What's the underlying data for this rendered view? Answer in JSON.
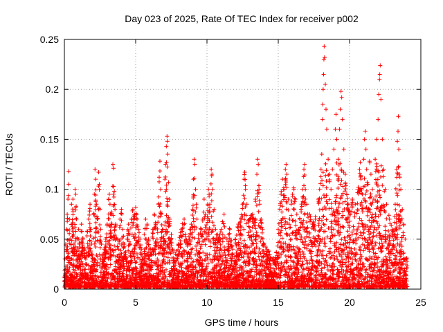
{
  "chart_data": {
    "type": "scatter",
    "title": "Day 023 of 2025, Rate Of TEC Index for receiver p002",
    "xlabel": "GPS time / hours",
    "ylabel": "ROTI / TECUs",
    "xlim": [
      0,
      25
    ],
    "ylim": [
      0,
      0.25
    ],
    "x_ticks": [
      "0",
      "5",
      "10",
      "15",
      "20",
      "25"
    ],
    "y_ticks": [
      "0",
      "0.05",
      "0.1",
      "0.15",
      "0.2",
      "0.25"
    ],
    "marker": "+",
    "color": "#ff0000",
    "grid": true,
    "series": [
      {
        "name": "ROTI",
        "points": [
          [
            0.05,
            0.012
          ],
          [
            0.1,
            0.045
          ],
          [
            0.15,
            0.06
          ],
          [
            0.2,
            0.075
          ],
          [
            0.25,
            0.09
          ],
          [
            0.3,
            0.118
          ],
          [
            0.3,
            0.105
          ],
          [
            0.35,
            0.07
          ],
          [
            0.4,
            0.05
          ],
          [
            0.45,
            0.03
          ],
          [
            0.5,
            0.085
          ],
          [
            0.55,
            0.065
          ],
          [
            0.6,
            0.09
          ],
          [
            0.65,
            0.055
          ],
          [
            0.7,
            0.04
          ],
          [
            0.75,
            0.1
          ],
          [
            0.8,
            0.095
          ],
          [
            0.85,
            0.07
          ],
          [
            0.9,
            0.05
          ],
          [
            0.95,
            0.03
          ],
          [
            1.0,
            0.06
          ],
          [
            1.05,
            0.045
          ],
          [
            1.1,
            0.035
          ],
          [
            1.2,
            0.065
          ],
          [
            1.3,
            0.05
          ],
          [
            1.4,
            0.04
          ],
          [
            1.5,
            0.03
          ],
          [
            1.6,
            0.058
          ],
          [
            1.7,
            0.07
          ],
          [
            1.8,
            0.085
          ],
          [
            1.85,
            0.06
          ],
          [
            1.9,
            0.045
          ],
          [
            1.95,
            0.035
          ],
          [
            2.0,
            0.03
          ],
          [
            2.05,
            0.075
          ],
          [
            2.1,
            0.095
          ],
          [
            2.15,
            0.12
          ],
          [
            2.2,
            0.11
          ],
          [
            2.25,
            0.085
          ],
          [
            2.3,
            0.07
          ],
          [
            2.4,
            0.117
          ],
          [
            2.45,
            0.105
          ],
          [
            2.5,
            0.08
          ],
          [
            2.55,
            0.06
          ],
          [
            2.6,
            0.045
          ],
          [
            2.7,
            0.03
          ],
          [
            2.8,
            0.04
          ],
          [
            2.9,
            0.05
          ],
          [
            3.0,
            0.065
          ],
          [
            3.1,
            0.09
          ],
          [
            3.15,
            0.095
          ],
          [
            3.2,
            0.085
          ],
          [
            3.3,
            0.075
          ],
          [
            3.4,
            0.125
          ],
          [
            3.45,
            0.121
          ],
          [
            3.5,
            0.098
          ],
          [
            3.55,
            0.08
          ],
          [
            3.6,
            0.065
          ],
          [
            3.7,
            0.05
          ],
          [
            3.8,
            0.04
          ],
          [
            3.9,
            0.07
          ],
          [
            4.0,
            0.08
          ],
          [
            4.1,
            0.06
          ],
          [
            4.2,
            0.045
          ],
          [
            4.3,
            0.035
          ],
          [
            4.4,
            0.05
          ],
          [
            4.5,
            0.065
          ],
          [
            4.6,
            0.055
          ],
          [
            4.7,
            0.07
          ],
          [
            4.8,
            0.08
          ],
          [
            4.9,
            0.075
          ],
          [
            5.0,
            0.082
          ],
          [
            5.1,
            0.07
          ],
          [
            5.2,
            0.06
          ],
          [
            5.3,
            0.05
          ],
          [
            5.4,
            0.04
          ],
          [
            5.5,
            0.03
          ],
          [
            5.6,
            0.055
          ],
          [
            5.7,
            0.07
          ],
          [
            5.8,
            0.065
          ],
          [
            5.9,
            0.05
          ],
          [
            6.0,
            0.04
          ],
          [
            6.1,
            0.035
          ],
          [
            6.2,
            0.06
          ],
          [
            6.3,
            0.075
          ],
          [
            6.4,
            0.065
          ],
          [
            6.5,
            0.05
          ],
          [
            6.6,
            0.085
          ],
          [
            6.65,
            0.112
          ],
          [
            6.7,
            0.128
          ],
          [
            6.75,
            0.1
          ],
          [
            6.8,
            0.075
          ],
          [
            6.9,
            0.06
          ],
          [
            7.0,
            0.045
          ],
          [
            7.05,
            0.11
          ],
          [
            7.1,
            0.125
          ],
          [
            7.15,
            0.143
          ],
          [
            7.2,
            0.153
          ],
          [
            7.22,
            0.148
          ],
          [
            7.25,
            0.135
          ],
          [
            7.3,
            0.107
          ],
          [
            7.35,
            0.09
          ],
          [
            7.4,
            0.07
          ],
          [
            7.5,
            0.055
          ],
          [
            7.6,
            0.04
          ],
          [
            7.8,
            0.035
          ],
          [
            8.0,
            0.045
          ],
          [
            8.2,
            0.06
          ],
          [
            8.4,
            0.07
          ],
          [
            8.5,
            0.055
          ],
          [
            8.6,
            0.045
          ],
          [
            8.8,
            0.06
          ],
          [
            8.9,
            0.065
          ],
          [
            9.0,
            0.08
          ],
          [
            9.05,
            0.11
          ],
          [
            9.1,
            0.13
          ],
          [
            9.15,
            0.125
          ],
          [
            9.2,
            0.1
          ],
          [
            9.25,
            0.085
          ],
          [
            9.3,
            0.07
          ],
          [
            9.4,
            0.055
          ],
          [
            9.6,
            0.06
          ],
          [
            9.7,
            0.07
          ],
          [
            9.8,
            0.09
          ],
          [
            9.9,
            0.075
          ],
          [
            10.0,
            0.06
          ],
          [
            10.05,
            0.085
          ],
          [
            10.1,
            0.1
          ],
          [
            10.15,
            0.095
          ],
          [
            10.2,
            0.085
          ],
          [
            10.3,
            0.12
          ],
          [
            10.35,
            0.115
          ],
          [
            10.4,
            0.1
          ],
          [
            10.5,
            0.08
          ],
          [
            10.6,
            0.06
          ],
          [
            10.8,
            0.05
          ],
          [
            11.0,
            0.06
          ],
          [
            11.2,
            0.075
          ],
          [
            11.4,
            0.05
          ],
          [
            11.6,
            0.06
          ],
          [
            11.8,
            0.04
          ],
          [
            12.0,
            0.05
          ],
          [
            12.2,
            0.065
          ],
          [
            12.4,
            0.07
          ],
          [
            12.5,
            0.085
          ],
          [
            12.6,
            0.11
          ],
          [
            12.65,
            0.117
          ],
          [
            12.7,
            0.1
          ],
          [
            12.8,
            0.085
          ],
          [
            13.0,
            0.07
          ],
          [
            13.2,
            0.075
          ],
          [
            13.4,
            0.09
          ],
          [
            13.5,
            0.115
          ],
          [
            13.55,
            0.13
          ],
          [
            13.6,
            0.125
          ],
          [
            13.65,
            0.1
          ],
          [
            13.7,
            0.085
          ],
          [
            13.8,
            0.07
          ],
          [
            13.9,
            0.06
          ],
          [
            14.0,
            0.045
          ],
          [
            14.2,
            0.04
          ],
          [
            14.4,
            0.035
          ],
          [
            14.6,
            0.03
          ],
          [
            14.8,
            0.03
          ],
          [
            15.0,
            0.06
          ],
          [
            15.1,
            0.08
          ],
          [
            15.2,
            0.095
          ],
          [
            15.3,
            0.11
          ],
          [
            15.4,
            0.1
          ],
          [
            15.5,
            0.12
          ],
          [
            15.55,
            0.125
          ],
          [
            15.6,
            0.115
          ],
          [
            15.7,
            0.09
          ],
          [
            15.8,
            0.07
          ],
          [
            15.9,
            0.085
          ],
          [
            16.0,
            0.095
          ],
          [
            16.1,
            0.1
          ],
          [
            16.2,
            0.09
          ],
          [
            16.3,
            0.075
          ],
          [
            16.4,
            0.06
          ],
          [
            16.5,
            0.07
          ],
          [
            16.6,
            0.08
          ],
          [
            16.7,
            0.1
          ],
          [
            16.8,
            0.12
          ],
          [
            16.85,
            0.125
          ],
          [
            16.9,
            0.1
          ],
          [
            17.0,
            0.085
          ],
          [
            17.2,
            0.075
          ],
          [
            17.4,
            0.065
          ],
          [
            17.6,
            0.07
          ],
          [
            17.8,
            0.09
          ],
          [
            17.9,
            0.1
          ],
          [
            18.0,
            0.12
          ],
          [
            18.05,
            0.135
          ],
          [
            18.1,
            0.17
          ],
          [
            18.12,
            0.185
          ],
          [
            18.15,
            0.2
          ],
          [
            18.18,
            0.215
          ],
          [
            18.2,
            0.23
          ],
          [
            18.22,
            0.243
          ],
          [
            18.25,
            0.232
          ],
          [
            18.3,
            0.205
          ],
          [
            18.35,
            0.18
          ],
          [
            18.4,
            0.16
          ],
          [
            18.5,
            0.13
          ],
          [
            18.6,
            0.115
          ],
          [
            18.7,
            0.1
          ],
          [
            18.8,
            0.12
          ],
          [
            18.9,
            0.14
          ],
          [
            19.0,
            0.16
          ],
          [
            19.05,
            0.175
          ],
          [
            19.1,
            0.15
          ],
          [
            19.2,
            0.13
          ],
          [
            19.3,
            0.16
          ],
          [
            19.35,
            0.18
          ],
          [
            19.4,
            0.198
          ],
          [
            19.45,
            0.192
          ],
          [
            19.5,
            0.17
          ],
          [
            19.6,
            0.14
          ],
          [
            19.7,
            0.115
          ],
          [
            19.8,
            0.095
          ],
          [
            19.9,
            0.085
          ],
          [
            20.0,
            0.075
          ],
          [
            20.2,
            0.09
          ],
          [
            20.4,
            0.085
          ],
          [
            20.6,
            0.1
          ],
          [
            20.7,
            0.12
          ],
          [
            20.75,
            0.127
          ],
          [
            20.8,
            0.11
          ],
          [
            20.9,
            0.095
          ],
          [
            21.0,
            0.13
          ],
          [
            21.05,
            0.15
          ],
          [
            21.1,
            0.158
          ],
          [
            21.15,
            0.14
          ],
          [
            21.2,
            0.12
          ],
          [
            21.3,
            0.105
          ],
          [
            21.4,
            0.128
          ],
          [
            21.5,
            0.115
          ],
          [
            21.6,
            0.1
          ],
          [
            21.7,
            0.09
          ],
          [
            21.8,
            0.13
          ],
          [
            21.9,
            0.15
          ],
          [
            22.0,
            0.17
          ],
          [
            22.05,
            0.195
          ],
          [
            22.1,
            0.21
          ],
          [
            22.12,
            0.215
          ],
          [
            22.15,
            0.224
          ],
          [
            22.2,
            0.19
          ],
          [
            22.3,
            0.15
          ],
          [
            22.4,
            0.12
          ],
          [
            22.5,
            0.1
          ],
          [
            22.6,
            0.085
          ],
          [
            22.8,
            0.07
          ],
          [
            23.0,
            0.06
          ],
          [
            23.2,
            0.085
          ],
          [
            23.3,
            0.12
          ],
          [
            23.35,
            0.148
          ],
          [
            23.4,
            0.158
          ],
          [
            23.42,
            0.173
          ],
          [
            23.45,
            0.14
          ],
          [
            23.5,
            0.115
          ],
          [
            23.6,
            0.1
          ],
          [
            23.7,
            0.08
          ],
          [
            23.8,
            0.065
          ],
          [
            23.9,
            0.05
          ],
          [
            24.0,
            0.03
          ]
        ]
      }
    ]
  }
}
